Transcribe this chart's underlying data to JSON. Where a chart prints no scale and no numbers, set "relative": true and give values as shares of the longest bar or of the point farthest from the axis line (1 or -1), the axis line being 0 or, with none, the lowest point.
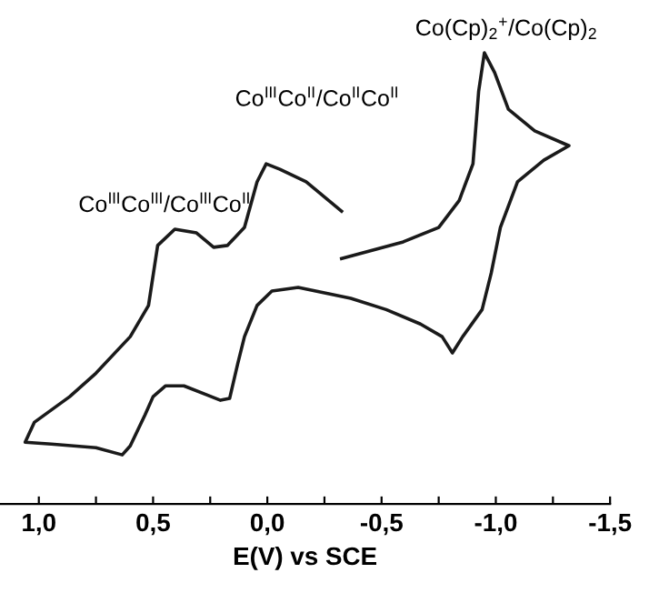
{
  "chart_data": {
    "type": "line",
    "relative": true,
    "xlabel": "E(V) vs SCE",
    "xlim": [
      1.17,
      -1.5
    ],
    "xticks": [
      {
        "value": 1.0,
        "label": "1,0"
      },
      {
        "value": 0.75,
        "label": null
      },
      {
        "value": 0.5,
        "label": "0,5"
      },
      {
        "value": 0.25,
        "label": null
      },
      {
        "value": 0.0,
        "label": "0,0"
      },
      {
        "value": -0.25,
        "label": null
      },
      {
        "value": -0.5,
        "label": "-0,5"
      },
      {
        "value": -0.75,
        "label": null
      },
      {
        "value": -1.0,
        "label": "-1,0"
      },
      {
        "value": -1.25,
        "label": null
      },
      {
        "value": -1.5,
        "label": "-1,5"
      }
    ],
    "tick_labels": "x",
    "grid": false,
    "legend": false,
    "marker": "none",
    "line_style": "solid",
    "annotations": [
      "Co$^{III}$Co$^{III}$/Co$^{III}$Co$^{II}$",
      "Co$^{III}$Co$^{II}$/Co$^{II}$Co$^{II}$",
      "Co(Cp)$_{2}$$^{+}$/Co(Cp)$_{2}$"
    ],
    "series": [
      {
        "color": "#1a1a1a",
        "x": [
          -0.325,
          -0.595,
          -0.75,
          -0.84,
          -0.9,
          -0.925,
          -0.95,
          -0.995,
          -1.055,
          -1.17,
          -1.32,
          -1.21,
          -1.095,
          -1.02,
          -0.98,
          -0.94,
          -0.855,
          -0.81,
          -0.765,
          -0.67,
          -0.52,
          -0.365,
          -0.135,
          -0.02,
          0.045,
          0.1,
          0.13,
          0.165,
          0.205,
          0.265,
          0.365,
          0.445,
          0.5,
          0.535,
          0.6,
          0.635,
          0.75,
          0.945,
          1.06,
          1.02,
          0.865,
          0.75,
          0.6,
          0.52,
          0.48,
          0.405,
          0.31,
          0.235,
          0.175,
          0.1,
          0.045,
          0.005,
          -0.055,
          -0.17,
          -0.325
        ],
        "values": [
          0.544,
          0.581,
          0.613,
          0.673,
          0.754,
          0.915,
          1.0,
          0.956,
          0.875,
          0.827,
          0.794,
          0.762,
          0.714,
          0.613,
          0.512,
          0.431,
          0.371,
          0.335,
          0.371,
          0.399,
          0.431,
          0.456,
          0.48,
          0.472,
          0.44,
          0.371,
          0.31,
          0.234,
          0.23,
          0.242,
          0.262,
          0.262,
          0.238,
          0.198,
          0.129,
          0.109,
          0.125,
          0.133,
          0.137,
          0.181,
          0.238,
          0.29,
          0.371,
          0.44,
          0.573,
          0.609,
          0.601,
          0.569,
          0.573,
          0.613,
          0.714,
          0.754,
          0.742,
          0.714,
          0.649
        ]
      }
    ]
  }
}
